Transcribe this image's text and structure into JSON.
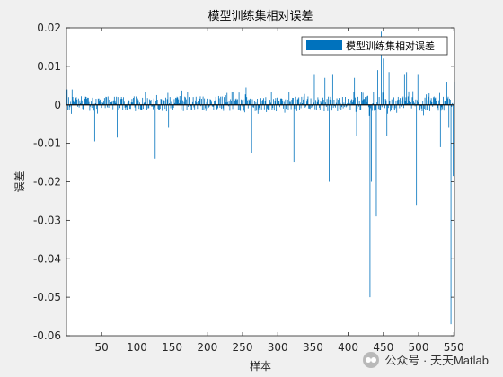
{
  "chart_data": {
    "type": "bar",
    "title": "模型训练集相对误差",
    "xlabel": "样本",
    "ylabel": "误差",
    "legend": {
      "label": "模型训练集相对误差",
      "placement": "top-right"
    },
    "xlim": [
      0,
      551
    ],
    "ylim": [
      -0.06,
      0.02
    ],
    "xticks": [
      50,
      100,
      150,
      200,
      250,
      300,
      350,
      400,
      450,
      500,
      550
    ],
    "yticks": [
      -0.06,
      -0.05,
      -0.04,
      -0.03,
      -0.02,
      -0.01,
      0,
      0.01,
      0.02
    ],
    "ytick_labels": [
      "-0.06",
      "-0.05",
      "-0.04",
      "-0.03",
      "-0.02",
      "-0.01",
      "0",
      "0.01",
      "0.02"
    ],
    "grid": false,
    "color": "#0072bd",
    "noise_note": "baseline small errors mostly within ±0.004 for all 551 samples",
    "notable_points": [
      {
        "x": 1,
        "y": 0.004
      },
      {
        "x": 8,
        "y": 0.004
      },
      {
        "x": 40,
        "y": -0.0095
      },
      {
        "x": 72,
        "y": -0.0085
      },
      {
        "x": 100,
        "y": 0.005
      },
      {
        "x": 126,
        "y": -0.014
      },
      {
        "x": 145,
        "y": -0.006
      },
      {
        "x": 255,
        "y": 0.0045
      },
      {
        "x": 263,
        "y": -0.0125
      },
      {
        "x": 323,
        "y": -0.015
      },
      {
        "x": 352,
        "y": 0.008
      },
      {
        "x": 367,
        "y": 0.007
      },
      {
        "x": 373,
        "y": -0.02
      },
      {
        "x": 378,
        "y": 0.008
      },
      {
        "x": 409,
        "y": 0.007
      },
      {
        "x": 412,
        "y": -0.008
      },
      {
        "x": 431,
        "y": -0.05
      },
      {
        "x": 433,
        "y": -0.02
      },
      {
        "x": 440,
        "y": -0.029
      },
      {
        "x": 442,
        "y": 0.009
      },
      {
        "x": 447,
        "y": 0.019
      },
      {
        "x": 450,
        "y": 0.012
      },
      {
        "x": 455,
        "y": -0.008
      },
      {
        "x": 458,
        "y": 0.0085
      },
      {
        "x": 480,
        "y": 0.008
      },
      {
        "x": 483,
        "y": 0.0085
      },
      {
        "x": 488,
        "y": -0.0085
      },
      {
        "x": 497,
        "y": -0.026
      },
      {
        "x": 499,
        "y": 0.008
      },
      {
        "x": 531,
        "y": -0.011
      },
      {
        "x": 540,
        "y": 0.006
      },
      {
        "x": 543,
        "y": -0.006
      },
      {
        "x": 546,
        "y": -0.057
      },
      {
        "x": 549,
        "y": -0.0185
      },
      {
        "x": 551,
        "y": 0.006
      }
    ]
  },
  "watermark": {
    "text": "公众号 · 天天Matlab"
  }
}
